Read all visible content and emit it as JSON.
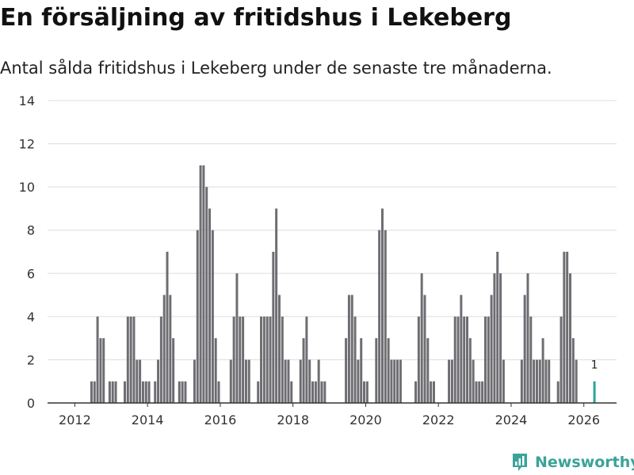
{
  "header": {
    "title": "En försäljning av fritidshus i Lekeberg",
    "subtitle": "Antal sålda fritidshus i Lekeberg under de senaste tre månaderna."
  },
  "brand": {
    "name": "Newsworthy",
    "icon": "newsworthy-logo-icon",
    "color": "#3aa39a"
  },
  "colors": {
    "bar": "#6d6d72",
    "highlight": "#26a69a",
    "grid": "#dddddd",
    "axis": "#333333"
  },
  "chart_data": {
    "type": "bar",
    "title": "En försäljning av fritidshus i Lekeberg",
    "subtitle": "Antal sålda fritidshus i Lekeberg under de senaste tre månaderna.",
    "xlabel": "",
    "ylabel": "",
    "ylim": [
      0,
      14
    ],
    "y_ticks": [
      0,
      2,
      4,
      6,
      8,
      10,
      12,
      14
    ],
    "x_range": [
      2011.25,
      2026.9
    ],
    "x_ticks": [
      2012,
      2014,
      2016,
      2018,
      2020,
      2022,
      2024,
      2026
    ],
    "x_tick_labels": [
      "2012",
      "2014",
      "2016",
      "2018",
      "2020",
      "2022",
      "2024",
      "2026"
    ],
    "start_date": "2011-12",
    "frequency": "monthly",
    "grid": true,
    "highlight_last": true,
    "last_value_label": "1",
    "values": [
      0,
      0,
      0,
      0,
      0,
      0,
      1,
      1,
      4,
      3,
      3,
      0,
      1,
      1,
      1,
      0,
      0,
      1,
      4,
      4,
      4,
      2,
      2,
      1,
      1,
      1,
      0,
      1,
      2,
      4,
      5,
      7,
      5,
      3,
      0,
      1,
      1,
      1,
      0,
      0,
      2,
      8,
      11,
      11,
      10,
      9,
      8,
      3,
      1,
      0,
      0,
      0,
      2,
      4,
      6,
      4,
      4,
      2,
      2,
      0,
      0,
      1,
      4,
      4,
      4,
      4,
      7,
      9,
      5,
      4,
      2,
      2,
      1,
      0,
      0,
      2,
      3,
      4,
      2,
      1,
      1,
      2,
      1,
      1,
      0,
      0,
      0,
      0,
      0,
      0,
      3,
      5,
      5,
      4,
      2,
      3,
      1,
      1,
      0,
      0,
      3,
      8,
      9,
      8,
      3,
      2,
      2,
      2,
      2,
      0,
      0,
      0,
      0,
      1,
      4,
      6,
      5,
      3,
      1,
      1,
      0,
      0,
      0,
      0,
      2,
      2,
      4,
      4,
      5,
      4,
      4,
      3,
      2,
      1,
      1,
      1,
      4,
      4,
      5,
      6,
      7,
      6,
      2,
      0,
      0,
      0,
      0,
      0,
      2,
      5,
      6,
      4,
      2,
      2,
      2,
      3,
      2,
      2,
      0,
      0,
      1,
      4,
      7,
      7,
      6,
      3,
      2,
      0,
      0,
      0,
      0,
      0,
      1
    ]
  }
}
